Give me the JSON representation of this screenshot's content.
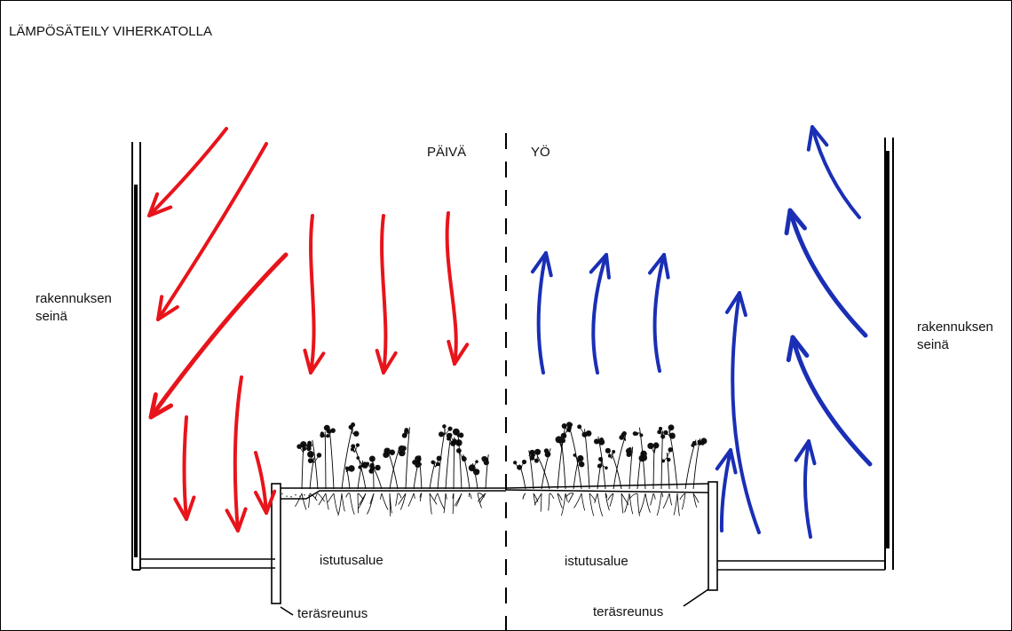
{
  "title": "LÄMPÖSÄTEILY VIHERKATOLLA",
  "labels": {
    "day": "PÄIVÄ",
    "night": "YÖ",
    "wall_left": "rakennuksen\nseinä",
    "wall_right": "rakennuksen\nseinä",
    "planting_left": "istutusalue",
    "planting_right": "istutusalue",
    "steel_edge_left": "teräsreunus",
    "steel_edge_right": "teräsreunus"
  },
  "colors": {
    "day_arrow": "#e8141b",
    "night_arrow": "#1a2fb5",
    "structure": "#000000"
  }
}
